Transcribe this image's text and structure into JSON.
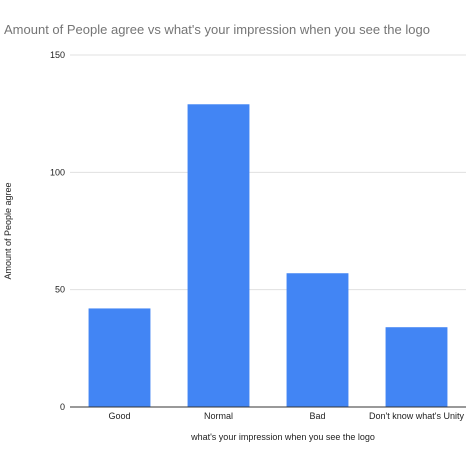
{
  "chart_data": {
    "type": "bar",
    "title": "Amount of People agree vs what's your impression when you see the logo",
    "xlabel": "what's your impression when you see the logo",
    "ylabel": "Amount of People agree",
    "categories": [
      "Good",
      "Normal",
      "Bad",
      "Don't know what's Unity"
    ],
    "values": [
      42,
      129,
      57,
      34
    ],
    "ylim": [
      0,
      150
    ],
    "yticks": [
      0,
      50,
      100,
      150
    ],
    "grid": true,
    "legend": "none",
    "colors": {
      "bar": "#4285f4",
      "grid": "#e0e0e0",
      "baseline": "#333333"
    }
  }
}
